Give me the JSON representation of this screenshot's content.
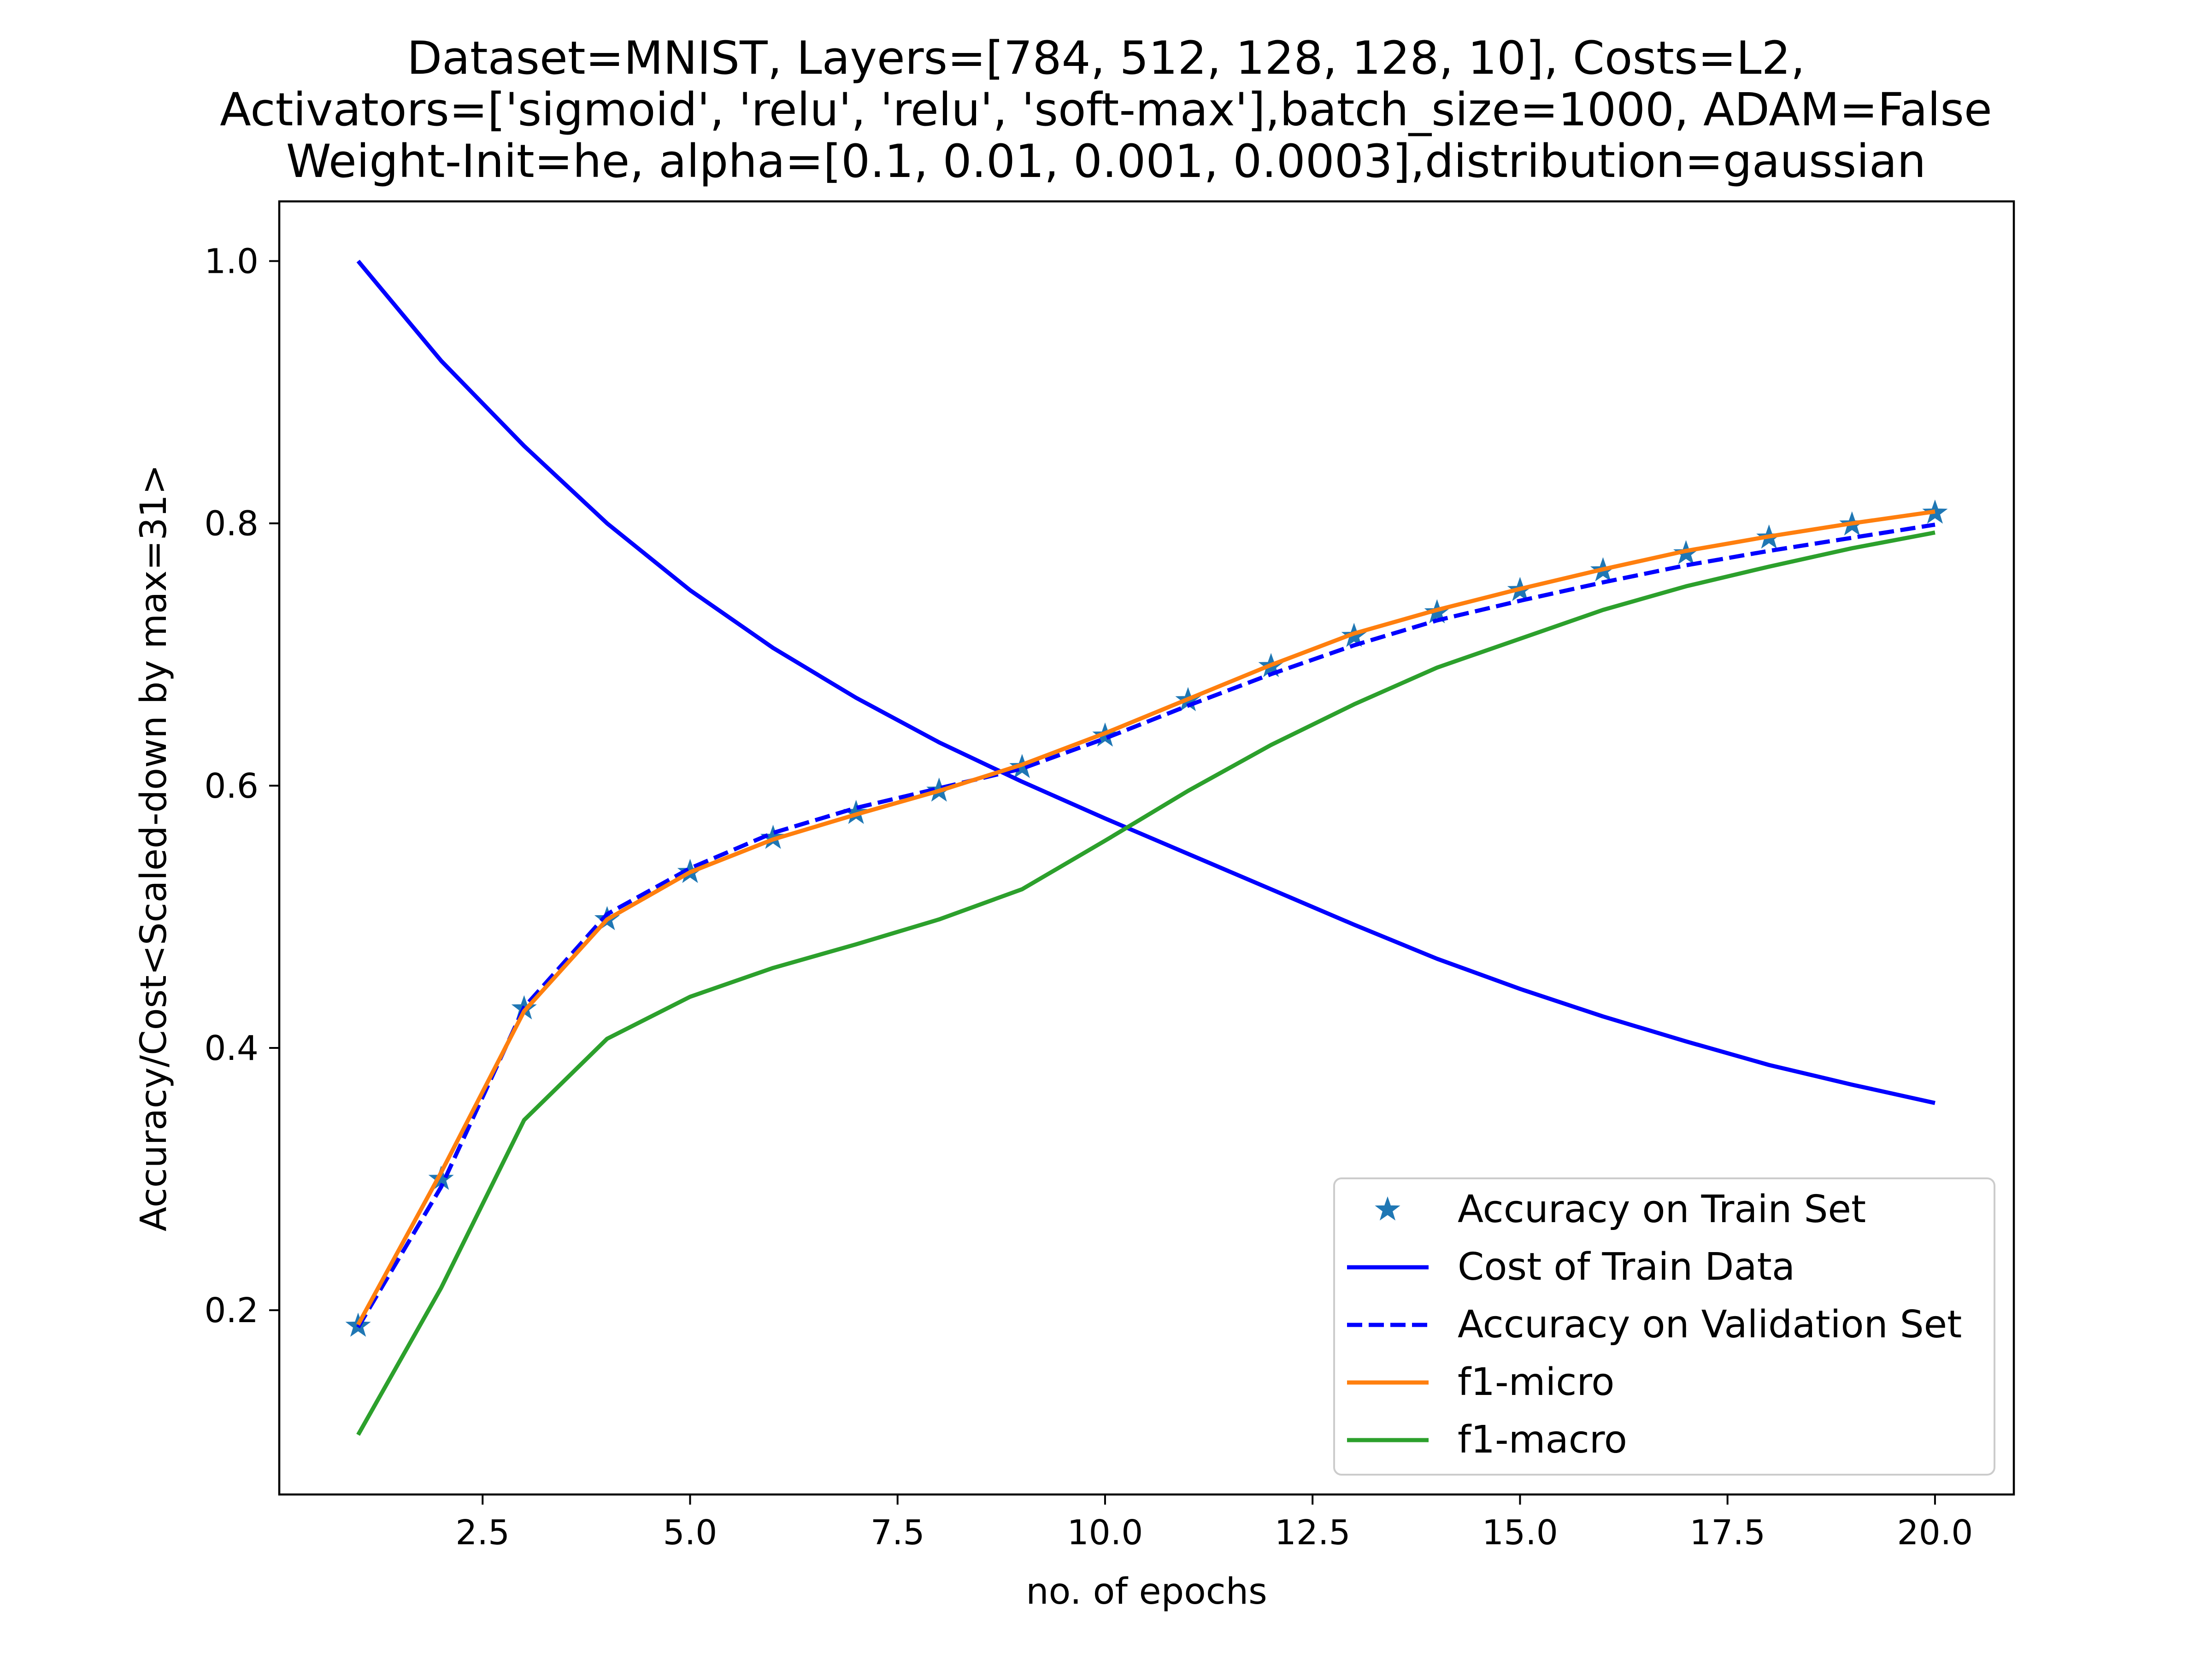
{
  "chart_data": {
    "type": "line",
    "title_lines": [
      "Dataset=MNIST, Layers=[784, 512, 128, 128, 10], Costs=L2,",
      "Activators=['sigmoid', 'relu', 'relu', 'soft-max'],batch_size=1000, ADAM=False",
      "Weight-Init=he, alpha=[0.1, 0.01, 0.001, 0.0003],distribution=gaussian"
    ],
    "xlabel": "no. of epochs",
    "ylabel": "Accuracy/Cost<Scaled-down by max=31>",
    "xlim": [
      0.05,
      20.95
    ],
    "ylim": [
      0.0595,
      1.0455
    ],
    "xticks": [
      2.5,
      5.0,
      7.5,
      10.0,
      12.5,
      15.0,
      17.5,
      20.0
    ],
    "xtick_labels": [
      "2.5",
      "5.0",
      "7.5",
      "10.0",
      "12.5",
      "15.0",
      "17.5",
      "20.0"
    ],
    "yticks": [
      0.2,
      0.4,
      0.6,
      0.8,
      1.0
    ],
    "ytick_labels": [
      "0.2",
      "0.4",
      "0.6",
      "0.8",
      "1.0"
    ],
    "grid": false,
    "legend_position": "lower right",
    "x": [
      1,
      2,
      3,
      4,
      5,
      6,
      7,
      8,
      9,
      10,
      11,
      12,
      13,
      14,
      15,
      16,
      17,
      18,
      19,
      20
    ],
    "series": [
      {
        "name": "Accuracy on Train Set",
        "style": "star-markers",
        "color": "#1f77b4",
        "values": [
          0.188,
          0.3,
          0.43,
          0.498,
          0.534,
          0.56,
          0.579,
          0.596,
          0.614,
          0.638,
          0.665,
          0.691,
          0.714,
          0.732,
          0.749,
          0.764,
          0.777,
          0.789,
          0.799,
          0.808
        ]
      },
      {
        "name": "Cost of Train Data",
        "style": "solid",
        "color": "#0000ff",
        "values": [
          1.0,
          0.924,
          0.859,
          0.8,
          0.749,
          0.705,
          0.667,
          0.633,
          0.603,
          0.575,
          0.548,
          0.521,
          0.494,
          0.468,
          0.445,
          0.424,
          0.405,
          0.387,
          0.372,
          0.358
        ]
      },
      {
        "name": "Accuracy on Validation Set",
        "style": "dashed",
        "color": "#0000ff",
        "values": [
          0.187,
          0.294,
          0.431,
          0.502,
          0.537,
          0.564,
          0.583,
          0.598,
          0.613,
          0.636,
          0.661,
          0.685,
          0.707,
          0.726,
          0.741,
          0.755,
          0.768,
          0.779,
          0.789,
          0.799
        ]
      },
      {
        "name": "f1-micro",
        "style": "solid",
        "color": "#ff7f0e",
        "values": [
          0.189,
          0.305,
          0.428,
          0.498,
          0.534,
          0.559,
          0.578,
          0.596,
          0.616,
          0.64,
          0.666,
          0.692,
          0.716,
          0.734,
          0.75,
          0.765,
          0.779,
          0.79,
          0.8,
          0.809
        ]
      },
      {
        "name": "f1-macro",
        "style": "solid",
        "color": "#2ca02c",
        "values": [
          0.105,
          0.217,
          0.345,
          0.407,
          0.439,
          0.461,
          0.479,
          0.498,
          0.521,
          0.558,
          0.596,
          0.631,
          0.662,
          0.69,
          0.712,
          0.734,
          0.752,
          0.767,
          0.781,
          0.793
        ]
      }
    ]
  }
}
